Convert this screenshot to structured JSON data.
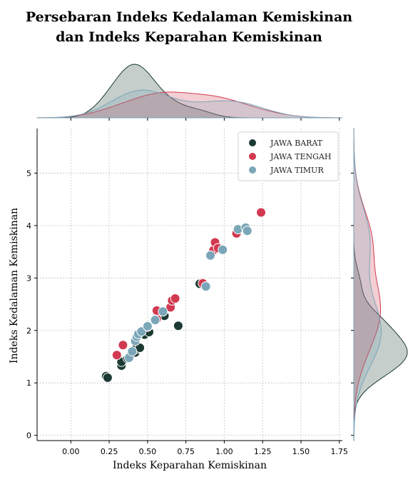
{
  "chart_data": {
    "type": "scatter",
    "title_lines": [
      "Persebaran Indeks Kedalaman Kemiskinan",
      "dan Indeks Keparahan Kemiskinan"
    ],
    "xlabel": "Indeks Keparahan Kemiskinan",
    "ylabel": "Indeks Kedalaman Kemiskinan",
    "xlim": [
      -0.22,
      1.77
    ],
    "ylim": [
      -0.1,
      5.85
    ],
    "xticks": [
      "0.00",
      "0.25",
      "0.50",
      "0.75",
      "1.00",
      "1.25",
      "1.50",
      "1.75"
    ],
    "yticks": [
      "0",
      "1",
      "2",
      "3",
      "4",
      "5"
    ],
    "grid": true,
    "legend_position": "top-right",
    "marginals": "kde",
    "series": [
      {
        "name": "JAWA BARAT",
        "color": "#1b3a33",
        "points": [
          [
            0.23,
            1.13
          ],
          [
            0.24,
            1.1
          ],
          [
            0.33,
            1.33
          ],
          [
            0.33,
            1.4
          ],
          [
            0.37,
            1.47
          ],
          [
            0.38,
            1.5
          ],
          [
            0.42,
            1.58
          ],
          [
            0.43,
            1.65
          ],
          [
            0.43,
            1.7
          ],
          [
            0.45,
            1.67
          ],
          [
            0.48,
            1.92
          ],
          [
            0.51,
            1.97
          ],
          [
            0.56,
            2.25
          ],
          [
            0.61,
            2.28
          ],
          [
            0.7,
            2.09
          ],
          [
            0.84,
            2.89
          ]
        ]
      },
      {
        "name": "JAWA TENGAH",
        "color": "#d13a50",
        "points": [
          [
            0.3,
            1.53
          ],
          [
            0.34,
            1.72
          ],
          [
            0.5,
            2.07
          ],
          [
            0.56,
            2.22
          ],
          [
            0.56,
            2.38
          ],
          [
            0.65,
            2.44
          ],
          [
            0.66,
            2.57
          ],
          [
            0.68,
            2.61
          ],
          [
            0.86,
            2.9
          ],
          [
            0.93,
            3.53
          ],
          [
            0.94,
            3.68
          ],
          [
            0.96,
            3.57
          ],
          [
            1.08,
            3.85
          ],
          [
            1.24,
            4.25
          ]
        ]
      },
      {
        "name": "JAWA TIMUR",
        "color": "#7aa6b8",
        "points": [
          [
            0.38,
            1.48
          ],
          [
            0.4,
            1.6
          ],
          [
            0.42,
            1.8
          ],
          [
            0.43,
            1.88
          ],
          [
            0.44,
            1.93
          ],
          [
            0.46,
            1.98
          ],
          [
            0.5,
            2.08
          ],
          [
            0.55,
            2.2
          ],
          [
            0.6,
            2.36
          ],
          [
            0.88,
            2.84
          ],
          [
            0.91,
            3.43
          ],
          [
            0.99,
            3.54
          ],
          [
            1.09,
            3.93
          ],
          [
            1.14,
            3.96
          ],
          [
            1.15,
            3.9
          ]
        ]
      }
    ]
  }
}
